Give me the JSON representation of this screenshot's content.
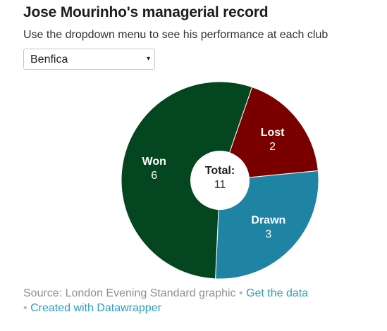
{
  "header": {
    "title": "Jose Mourinho's managerial record",
    "subtitle": "Use the dropdown menu to see his performance at each club"
  },
  "dropdown": {
    "selected": "Benfica",
    "arrow": "▾"
  },
  "chart_data": {
    "type": "pie",
    "donut": true,
    "slices": [
      {
        "label": "Lost",
        "value": 2,
        "color": "#7a0000"
      },
      {
        "label": "Drawn",
        "value": 3,
        "color": "#1f83a3"
      },
      {
        "label": "Won",
        "value": 6,
        "color": "#04461f"
      }
    ],
    "center": {
      "label": "Total:",
      "value": "11"
    }
  },
  "footer": {
    "source": "Source: London Evening Standard graphic",
    "sep1": "•",
    "get_data": "Get the data",
    "sep2": "•",
    "created_with": "Created with Datawrapper"
  }
}
